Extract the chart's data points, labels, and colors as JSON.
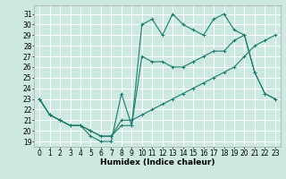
{
  "xlabel": "Humidex (Indice chaleur)",
  "bg_color": "#cce8e0",
  "grid_color": "#ffffff",
  "line_color": "#1a7a6e",
  "xlim": [
    -0.5,
    23.5
  ],
  "ylim": [
    18.5,
    31.8
  ],
  "yticks": [
    19,
    20,
    21,
    22,
    23,
    24,
    25,
    26,
    27,
    28,
    29,
    30,
    31
  ],
  "xticks": [
    0,
    1,
    2,
    3,
    4,
    5,
    6,
    7,
    8,
    9,
    10,
    11,
    12,
    13,
    14,
    15,
    16,
    17,
    18,
    19,
    20,
    21,
    22,
    23
  ],
  "series1_x": [
    0,
    1,
    2,
    3,
    4,
    5,
    6,
    7,
    8,
    9,
    10,
    11,
    12,
    13,
    14,
    15,
    16,
    17,
    18,
    19,
    20,
    21,
    22,
    23
  ],
  "series1_y": [
    23,
    21.5,
    21,
    20.5,
    20.5,
    19.5,
    19,
    19,
    23.5,
    20.5,
    30,
    30.5,
    29,
    31,
    30,
    29.5,
    29,
    30.5,
    31,
    29.5,
    29,
    25.5,
    23.5,
    23
  ],
  "series2_x": [
    0,
    1,
    2,
    3,
    4,
    5,
    6,
    7,
    8,
    9,
    10,
    11,
    12,
    13,
    14,
    15,
    16,
    17,
    18,
    19,
    20,
    21,
    22,
    23
  ],
  "series2_y": [
    23,
    21.5,
    21,
    20.5,
    20.5,
    20,
    19.5,
    19.5,
    21,
    21,
    21.5,
    22,
    22.5,
    23,
    23.5,
    24,
    24.5,
    25,
    25.5,
    26,
    27,
    28,
    28.5,
    29
  ],
  "series3_x": [
    0,
    1,
    2,
    3,
    4,
    5,
    6,
    7,
    8,
    9,
    10,
    11,
    12,
    13,
    14,
    15,
    16,
    17,
    18,
    19,
    20,
    21,
    22,
    23
  ],
  "series3_y": [
    23,
    21.5,
    21,
    20.5,
    20.5,
    20,
    19.5,
    19.5,
    20.5,
    20.5,
    27,
    26.5,
    26.5,
    26,
    26,
    26.5,
    27,
    27.5,
    27.5,
    28.5,
    29,
    25.5,
    23.5,
    23
  ],
  "tick_fontsize": 5.5,
  "xlabel_fontsize": 6.5
}
